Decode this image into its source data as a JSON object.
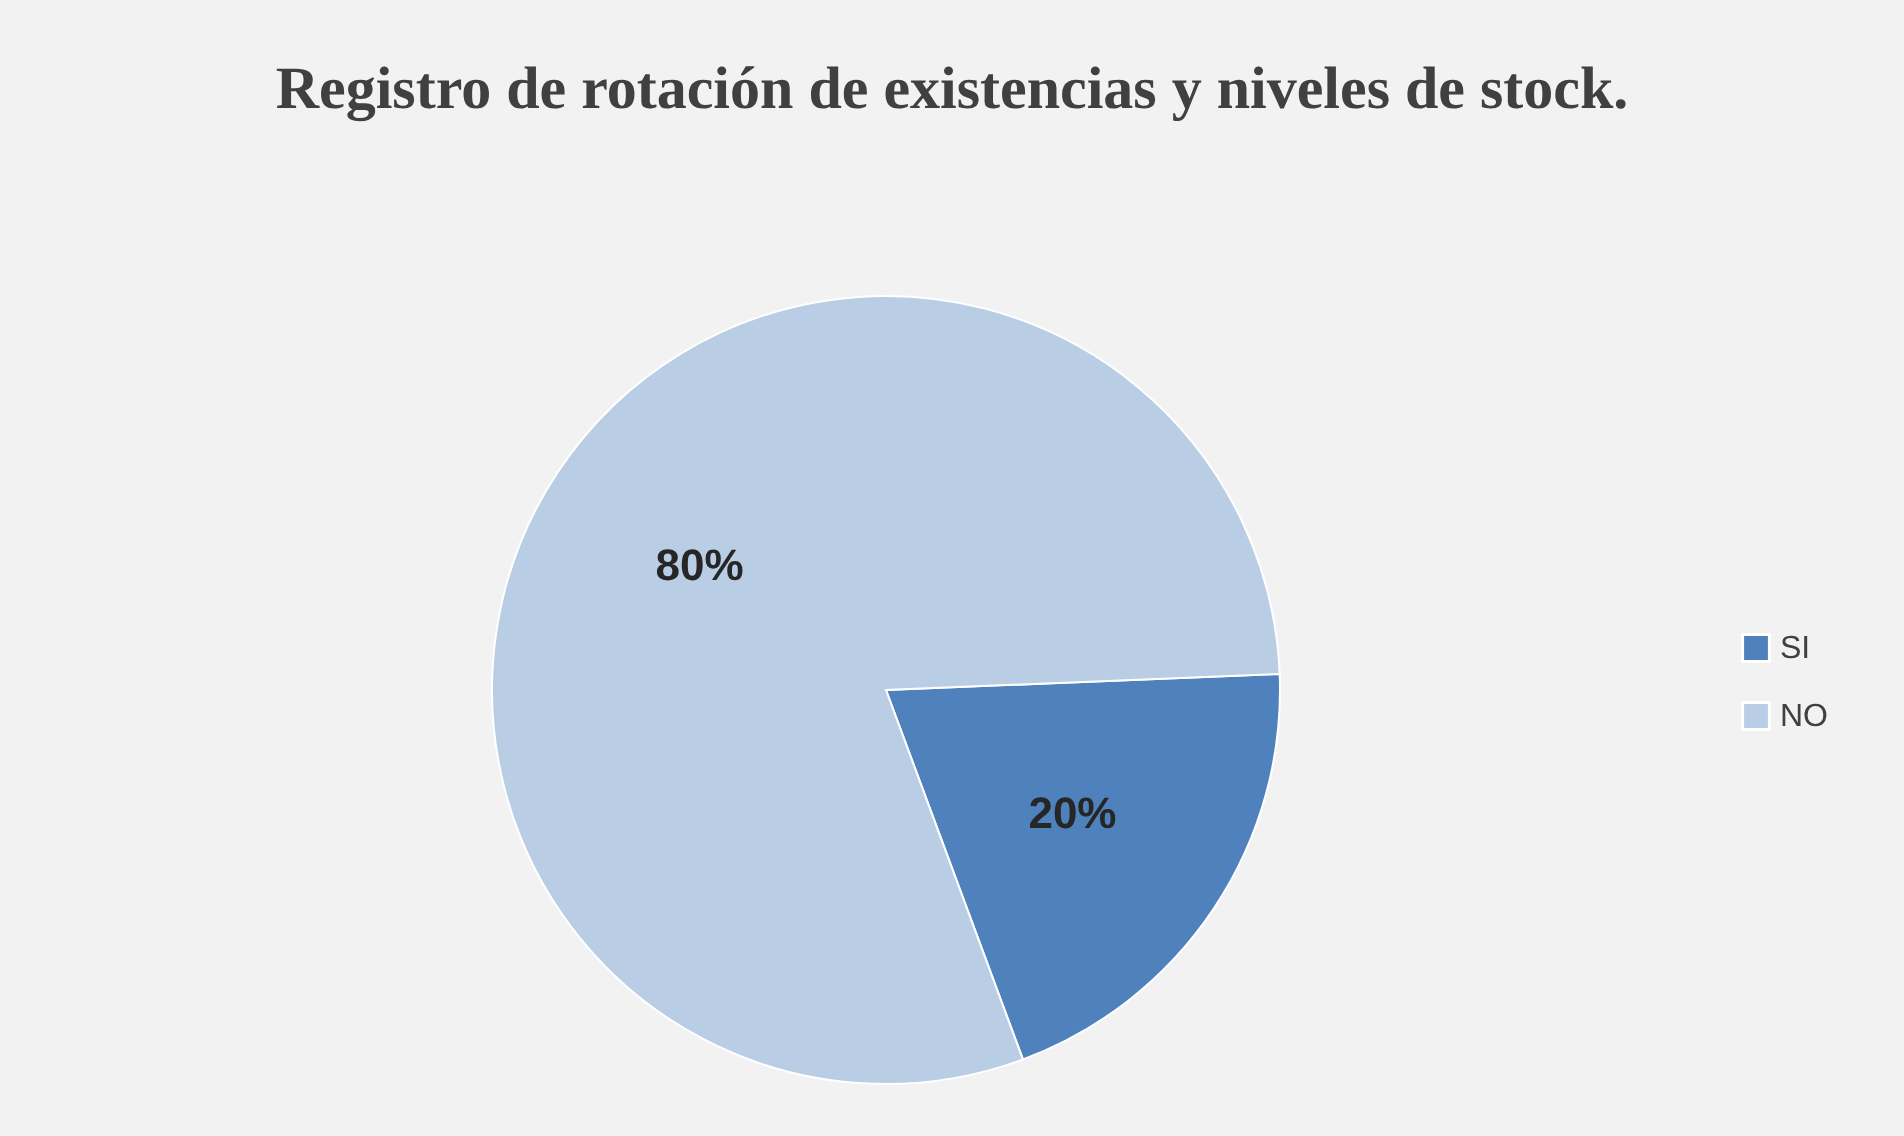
{
  "chart_data": {
    "type": "pie",
    "title": "Registro de rotación de existencias y niveles de stock.",
    "categories": [
      "SI",
      "NO"
    ],
    "values": [
      20,
      80
    ],
    "colors": [
      "#4f81bd",
      "#b9cde5"
    ],
    "value_labels": [
      "20%",
      "80%"
    ],
    "legend": "right"
  }
}
